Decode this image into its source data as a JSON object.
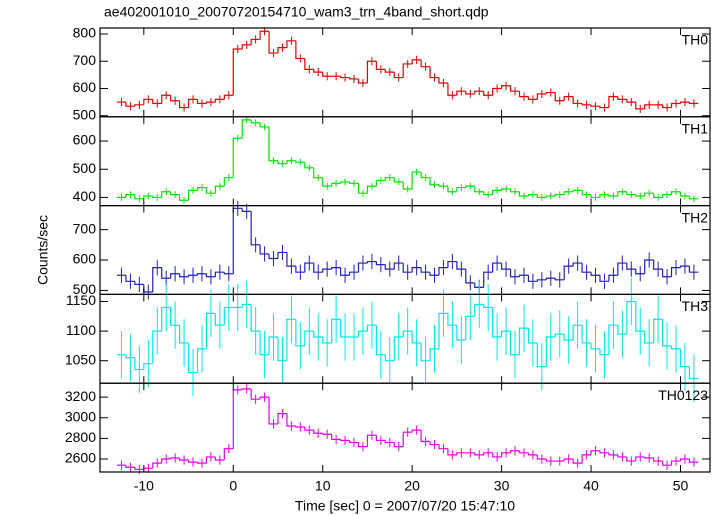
{
  "chart_data": {
    "type": "step",
    "title": "ae402001010_20070720154710_wam3_trn_4band_short.qdp",
    "xlabel": "Time [sec] 0 = 2007/07/20 15:47:10",
    "ylabel": "Counts/sec",
    "xlim": [
      -14.9,
      53.3
    ],
    "xticks": [
      -10,
      0,
      10,
      20,
      30,
      40,
      50
    ],
    "x": [
      -12.5,
      -11.5,
      -10.5,
      -9.5,
      -8.5,
      -7.5,
      -6.5,
      -5.5,
      -4.5,
      -3.5,
      -2.5,
      -1.5,
      -0.5,
      0.5,
      1.5,
      2.5,
      3.5,
      4.5,
      5.5,
      6.5,
      7.5,
      8.5,
      9.5,
      10.5,
      11.5,
      12.5,
      13.5,
      14.5,
      15.5,
      16.5,
      17.5,
      18.5,
      19.5,
      20.5,
      21.5,
      22.5,
      23.5,
      24.5,
      25.5,
      26.5,
      27.5,
      28.5,
      29.5,
      30.5,
      31.5,
      32.5,
      33.5,
      34.5,
      35.5,
      36.5,
      37.5,
      38.5,
      39.5,
      40.5,
      41.5,
      42.5,
      43.5,
      44.5,
      45.5,
      46.5,
      47.5,
      48.5,
      49.5,
      50.5,
      51.5
    ],
    "panels": [
      {
        "name": "TH0",
        "color": "#e80000",
        "ylim": [
          496,
          822
        ],
        "yticks": [
          500,
          600,
          700,
          800
        ],
        "error": 15,
        "values": [
          550,
          535,
          540,
          560,
          545,
          575,
          555,
          530,
          560,
          545,
          550,
          560,
          575,
          745,
          760,
          780,
          810,
          730,
          750,
          775,
          710,
          670,
          660,
          645,
          645,
          640,
          635,
          620,
          700,
          670,
          660,
          640,
          690,
          705,
          680,
          640,
          620,
          575,
          590,
          580,
          590,
          575,
          600,
          610,
          590,
          570,
          560,
          580,
          585,
          555,
          570,
          545,
          540,
          535,
          530,
          570,
          560,
          550,
          525,
          540,
          540,
          530,
          545,
          550,
          545
        ]
      },
      {
        "name": "TH1",
        "color": "#00e800",
        "ylim": [
          371,
          686
        ],
        "yticks": [
          400,
          500,
          600
        ],
        "error": 12,
        "values": [
          400,
          410,
          395,
          405,
          400,
          420,
          410,
          390,
          425,
          435,
          415,
          440,
          470,
          610,
          675,
          665,
          650,
          530,
          520,
          530,
          525,
          505,
          470,
          440,
          450,
          455,
          450,
          415,
          440,
          460,
          470,
          455,
          430,
          490,
          470,
          445,
          440,
          420,
          435,
          440,
          420,
          410,
          425,
          430,
          420,
          405,
          410,
          400,
          405,
          410,
          420,
          425,
          410,
          400,
          410,
          405,
          420,
          410,
          405,
          415,
          400,
          410,
          420,
          405,
          395
        ]
      },
      {
        "name": "TH2",
        "color": "#2020b8",
        "ylim": [
          487,
          779
        ],
        "yticks": [
          500,
          600,
          700
        ],
        "error": 25,
        "values": [
          550,
          530,
          520,
          495,
          575,
          540,
          555,
          545,
          550,
          555,
          545,
          560,
          555,
          770,
          760,
          650,
          620,
          605,
          625,
          580,
          560,
          590,
          560,
          570,
          575,
          550,
          560,
          590,
          595,
          585,
          570,
          590,
          560,
          575,
          560,
          550,
          575,
          595,
          570,
          525,
          510,
          560,
          590,
          570,
          545,
          550,
          530,
          535,
          540,
          535,
          580,
          590,
          560,
          550,
          530,
          550,
          590,
          570,
          555,
          600,
          570,
          545,
          575,
          580,
          560
        ]
      },
      {
        "name": "TH3",
        "color": "#00e8e8",
        "ylim": [
          1012,
          1162
        ],
        "yticks": [
          1050,
          1100,
          1150
        ],
        "error": 40,
        "values": [
          1060,
          1055,
          1035,
          1045,
          1100,
          1140,
          1110,
          1080,
          1030,
          1070,
          1130,
          1110,
          1140,
          1140,
          1145,
          1100,
          1060,
          1090,
          1050,
          1120,
          1075,
          1100,
          1090,
          1080,
          1120,
          1090,
          1090,
          1100,
          1110,
          1060,
          1050,
          1090,
          1100,
          1080,
          1050,
          1070,
          1130,
          1110,
          1085,
          1125,
          1145,
          1140,
          1090,
          1100,
          1060,
          1105,
          1080,
          1040,
          1090,
          1095,
          1085,
          1110,
          1080,
          1070,
          1060,
          1110,
          1095,
          1150,
          1100,
          1080,
          1120,
          1075,
          1070,
          1040,
          1020
        ]
      },
      {
        "name": "TH0123",
        "color": "#e800e8",
        "ylim": [
          2474,
          3335
        ],
        "yticks": [
          2600,
          2800,
          3000,
          3200
        ],
        "error": 45,
        "values": [
          2540,
          2520,
          2500,
          2510,
          2560,
          2600,
          2610,
          2590,
          2570,
          2560,
          2620,
          2590,
          2700,
          3270,
          3280,
          3180,
          3200,
          2940,
          3040,
          2920,
          2910,
          2880,
          2850,
          2840,
          2790,
          2780,
          2760,
          2720,
          2830,
          2780,
          2760,
          2720,
          2860,
          2880,
          2770,
          2740,
          2700,
          2640,
          2660,
          2660,
          2640,
          2660,
          2620,
          2660,
          2680,
          2660,
          2640,
          2600,
          2580,
          2580,
          2600,
          2560,
          2640,
          2680,
          2660,
          2640,
          2620,
          2580,
          2620,
          2610,
          2580,
          2540,
          2580,
          2600,
          2570
        ]
      }
    ]
  }
}
